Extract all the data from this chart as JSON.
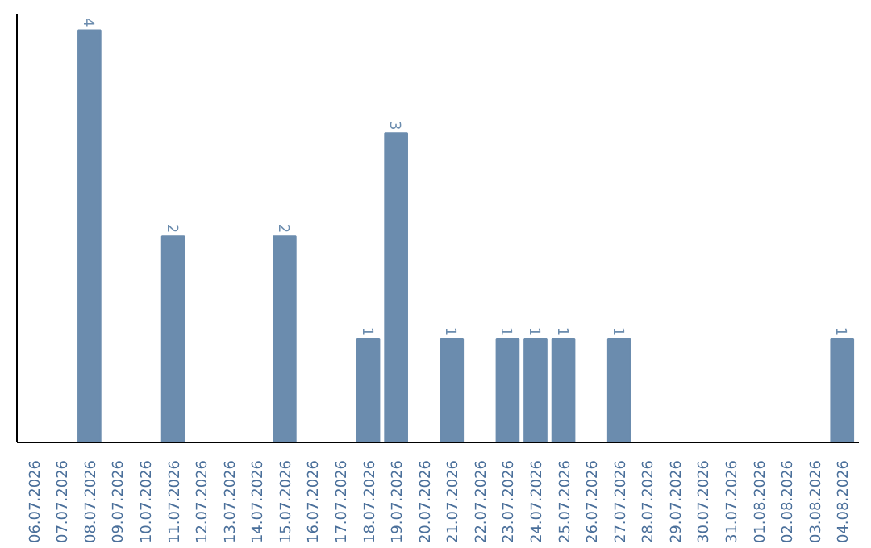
{
  "chart_data": {
    "type": "bar",
    "categories": [
      "06.07.2026",
      "07.07.2026",
      "08.07.2026",
      "09.07.2026",
      "10.07.2026",
      "11.07.2026",
      "12.07.2026",
      "13.07.2026",
      "14.07.2026",
      "15.07.2026",
      "16.07.2026",
      "17.07.2026",
      "18.07.2026",
      "19.07.2026",
      "20.07.2026",
      "21.07.2026",
      "22.07.2026",
      "23.07.2026",
      "24.07.2026",
      "25.07.2026",
      "26.07.2026",
      "27.07.2026",
      "28.07.2026",
      "29.07.2026",
      "30.07.2026",
      "31.07.2026",
      "01.08.2026",
      "02.08.2026",
      "03.08.2026",
      "04.08.2026"
    ],
    "values": [
      0,
      0,
      4,
      0,
      0,
      2,
      0,
      0,
      0,
      2,
      0,
      0,
      1,
      3,
      0,
      1,
      0,
      1,
      1,
      1,
      0,
      1,
      0,
      0,
      0,
      0,
      0,
      0,
      0,
      1
    ],
    "value_labels": [
      null,
      null,
      "4",
      null,
      null,
      "2",
      null,
      null,
      null,
      "2",
      null,
      null,
      "1",
      "3",
      null,
      "1",
      null,
      "1",
      "1",
      "1",
      null,
      "1",
      null,
      null,
      null,
      null,
      null,
      null,
      null,
      "1"
    ],
    "color": "#6b8cae",
    "grid": false,
    "tick_labels": "x"
  }
}
